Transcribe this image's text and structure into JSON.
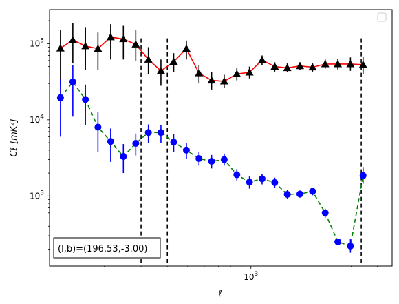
{
  "chart_data": {
    "type": "scatter",
    "xlabel": "ℓ",
    "ylabel": "Cℓ  [mK²]",
    "xscale": "log",
    "yscale": "log",
    "xlim": [
      110,
      4700
    ],
    "ylim": [
      120,
      280000
    ],
    "x_tick_labels": [
      {
        "value": 1000,
        "mantissa": "10",
        "exp": "3"
      }
    ],
    "y_tick_labels": [
      {
        "value": 1000,
        "mantissa": "10",
        "exp": "3"
      },
      {
        "value": 10000,
        "mantissa": "10",
        "exp": "4"
      },
      {
        "value": 100000,
        "mantissa": "10",
        "exp": "5"
      }
    ],
    "vlines": [
      300,
      400,
      3350
    ],
    "legend": "top-right",
    "annotation": "(l,b)=(196.53,-3.00)",
    "series": [
      {
        "line_color": "#ff0000",
        "line_style": "solid",
        "marker": "triangle",
        "marker_color": "#000000",
        "errbar_color": "#000000",
        "points": [
          {
            "x": 124,
            "y": 87000,
            "lo": 28000,
            "hi": 150000
          },
          {
            "x": 142,
            "y": 112000,
            "lo": 55000,
            "hi": 185000
          },
          {
            "x": 163,
            "y": 93000,
            "lo": 45000,
            "hi": 165000
          },
          {
            "x": 187,
            "y": 86000,
            "lo": 45000,
            "hi": 140000
          },
          {
            "x": 215,
            "y": 122000,
            "lo": 62000,
            "hi": 180000
          },
          {
            "x": 247,
            "y": 115000,
            "lo": 62000,
            "hi": 175000
          },
          {
            "x": 283,
            "y": 98000,
            "lo": 60000,
            "hi": 150000
          },
          {
            "x": 325,
            "y": 62000,
            "lo": 40000,
            "hi": 90000
          },
          {
            "x": 373,
            "y": 44000,
            "lo": 28000,
            "hi": 62000
          },
          {
            "x": 429,
            "y": 58000,
            "lo": 42000,
            "hi": 75000
          },
          {
            "x": 493,
            "y": 86000,
            "lo": 62000,
            "hi": 110000
          },
          {
            "x": 566,
            "y": 41000,
            "lo": 30000,
            "hi": 52000
          },
          {
            "x": 650,
            "y": 33000,
            "lo": 25000,
            "hi": 42000
          },
          {
            "x": 746,
            "y": 32000,
            "lo": 26000,
            "hi": 39000
          },
          {
            "x": 857,
            "y": 40000,
            "lo": 33000,
            "hi": 48000
          },
          {
            "x": 984,
            "y": 42000,
            "lo": 35000,
            "hi": 50000
          },
          {
            "x": 1130,
            "y": 61000,
            "lo": 52000,
            "hi": 70000
          },
          {
            "x": 1298,
            "y": 50000,
            "lo": 43000,
            "hi": 57000
          },
          {
            "x": 1490,
            "y": 48000,
            "lo": 42000,
            "hi": 55000
          },
          {
            "x": 1711,
            "y": 51000,
            "lo": 45000,
            "hi": 57000
          },
          {
            "x": 1965,
            "y": 49000,
            "lo": 43000,
            "hi": 55000
          },
          {
            "x": 2257,
            "y": 54000,
            "lo": 47000,
            "hi": 62000
          },
          {
            "x": 2592,
            "y": 54000,
            "lo": 46000,
            "hi": 63000
          },
          {
            "x": 2976,
            "y": 54000,
            "lo": 44000,
            "hi": 66000
          },
          {
            "x": 3418,
            "y": 53000,
            "lo": 40000,
            "hi": 68000
          }
        ]
      },
      {
        "line_color": "#008000",
        "line_style": "dashed",
        "marker": "circle",
        "marker_color": "#0000ff",
        "errbar_color": "#0000ff",
        "points": [
          {
            "x": 124,
            "y": 19500,
            "lo": 6000,
            "hi": 34000
          },
          {
            "x": 142,
            "y": 31500,
            "lo": 11000,
            "hi": 52000
          },
          {
            "x": 163,
            "y": 18500,
            "lo": 8500,
            "hi": 29000
          },
          {
            "x": 187,
            "y": 8000,
            "lo": 3800,
            "hi": 12500
          },
          {
            "x": 215,
            "y": 5200,
            "lo": 2800,
            "hi": 7700
          },
          {
            "x": 247,
            "y": 3300,
            "lo": 2000,
            "hi": 4800
          },
          {
            "x": 283,
            "y": 4900,
            "lo": 3400,
            "hi": 6600
          },
          {
            "x": 325,
            "y": 6800,
            "lo": 5000,
            "hi": 8700
          },
          {
            "x": 373,
            "y": 6800,
            "lo": 5000,
            "hi": 8600
          },
          {
            "x": 429,
            "y": 5100,
            "lo": 3800,
            "hi": 6500
          },
          {
            "x": 493,
            "y": 4000,
            "lo": 3100,
            "hi": 5000
          },
          {
            "x": 566,
            "y": 3100,
            "lo": 2500,
            "hi": 3800
          },
          {
            "x": 650,
            "y": 2850,
            "lo": 2300,
            "hi": 3450
          },
          {
            "x": 746,
            "y": 3000,
            "lo": 2500,
            "hi": 3600
          },
          {
            "x": 857,
            "y": 1900,
            "lo": 1600,
            "hi": 2250
          },
          {
            "x": 984,
            "y": 1520,
            "lo": 1250,
            "hi": 1800
          },
          {
            "x": 1130,
            "y": 1680,
            "lo": 1420,
            "hi": 1950
          },
          {
            "x": 1298,
            "y": 1500,
            "lo": 1280,
            "hi": 1740
          },
          {
            "x": 1490,
            "y": 1050,
            "lo": 920,
            "hi": 1200
          },
          {
            "x": 1711,
            "y": 1060,
            "lo": 950,
            "hi": 1180
          },
          {
            "x": 1965,
            "y": 1150,
            "lo": 1020,
            "hi": 1290
          },
          {
            "x": 2257,
            "y": 600,
            "lo": 520,
            "hi": 680
          },
          {
            "x": 2592,
            "y": 250,
            "lo": 225,
            "hi": 275
          },
          {
            "x": 2976,
            "y": 220,
            "lo": 180,
            "hi": 270
          },
          {
            "x": 3418,
            "y": 1850,
            "lo": 1450,
            "hi": 2400
          }
        ]
      }
    ]
  }
}
